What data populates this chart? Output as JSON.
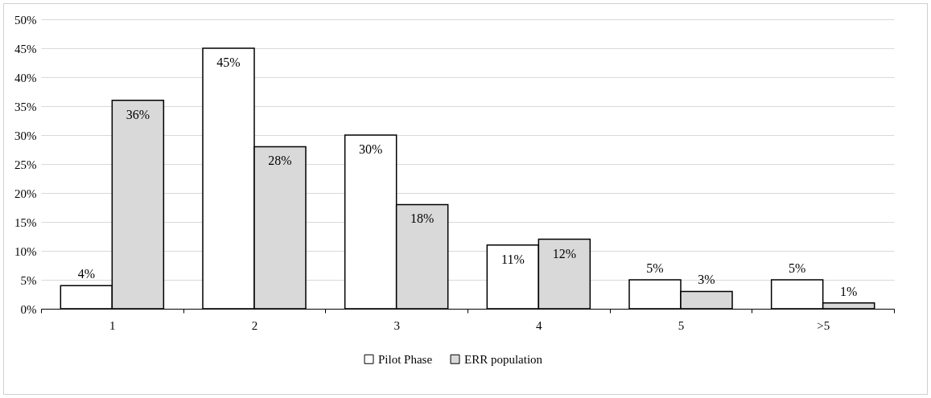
{
  "chart_data": {
    "type": "bar",
    "categories": [
      "1",
      "2",
      "3",
      "4",
      "5",
      ">5"
    ],
    "series": [
      {
        "name": "Pilot Phase",
        "color": "#ffffff",
        "values": [
          4,
          45,
          30,
          11,
          5,
          5
        ],
        "value_labels": [
          "4%",
          "45%",
          "30%",
          "11%",
          "5%",
          "5%"
        ]
      },
      {
        "name": "ERR population",
        "color": "#d9d9d9",
        "values": [
          36,
          28,
          18,
          12,
          3,
          1
        ],
        "value_labels": [
          "36%",
          "28%",
          "18%",
          "12%",
          "3%",
          "1%"
        ]
      }
    ],
    "ylim": [
      0,
      50
    ],
    "yticks": [
      {
        "value": 0,
        "label": "0%"
      },
      {
        "value": 5,
        "label": "5%"
      },
      {
        "value": 10,
        "label": "10%"
      },
      {
        "value": 15,
        "label": "15%"
      },
      {
        "value": 20,
        "label": "20%"
      },
      {
        "value": 25,
        "label": "25%"
      },
      {
        "value": 30,
        "label": "30%"
      },
      {
        "value": 35,
        "label": "35%"
      },
      {
        "value": 40,
        "label": "40%"
      },
      {
        "value": 45,
        "label": "45%"
      },
      {
        "value": 50,
        "label": "50%"
      }
    ],
    "grid": "y",
    "legend": "bottom"
  }
}
